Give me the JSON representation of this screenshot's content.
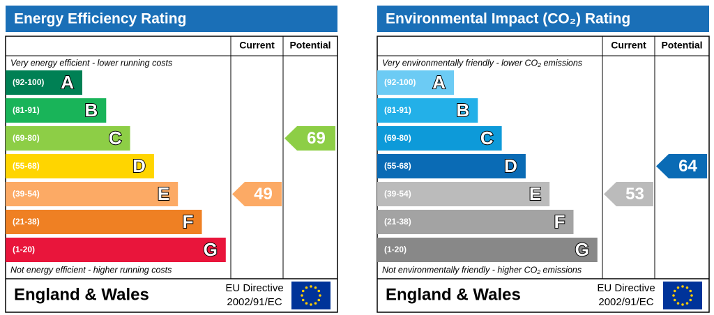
{
  "chart_data": [
    {
      "type": "epc",
      "title": "Energy Efficiency Rating",
      "columns": [
        "Current",
        "Potential"
      ],
      "top_note": "Very energy efficient - lower running costs",
      "bottom_note": "Not energy efficient - higher running costs",
      "bands": [
        {
          "label": "(92-100)",
          "letter": "A",
          "color": "#008054"
        },
        {
          "label": "(81-91)",
          "letter": "B",
          "color": "#19b459"
        },
        {
          "label": "(69-80)",
          "letter": "C",
          "color": "#8dce46"
        },
        {
          "label": "(55-68)",
          "letter": "D",
          "color": "#ffd500"
        },
        {
          "label": "(39-54)",
          "letter": "E",
          "color": "#fcaa65"
        },
        {
          "label": "(21-38)",
          "letter": "F",
          "color": "#ef8023"
        },
        {
          "label": "(1-20)",
          "letter": "G",
          "color": "#e9153b"
        }
      ],
      "current": 49,
      "potential": 69,
      "region": "England & Wales",
      "directive": [
        "EU Directive",
        "2002/91/EC"
      ]
    },
    {
      "type": "epc",
      "title": "Environmental Impact (CO₂) Rating",
      "columns": [
        "Current",
        "Potential"
      ],
      "top_note": "Very environmentally friendly - lower CO₂ emissions",
      "bottom_note": "Not environmentally friendly - higher CO₂ emissions",
      "bands": [
        {
          "label": "(92-100)",
          "letter": "A",
          "color": "#6ccbf4"
        },
        {
          "label": "(81-91)",
          "letter": "B",
          "color": "#23b0e8"
        },
        {
          "label": "(69-80)",
          "letter": "C",
          "color": "#0d9ad9"
        },
        {
          "label": "(55-68)",
          "letter": "D",
          "color": "#0a6bb5"
        },
        {
          "label": "(39-54)",
          "letter": "E",
          "color": "#bbbbbb"
        },
        {
          "label": "(21-38)",
          "letter": "F",
          "color": "#a3a3a3"
        },
        {
          "label": "(1-20)",
          "letter": "G",
          "color": "#888888"
        }
      ],
      "current": 53,
      "potential": 64,
      "region": "England & Wales",
      "directive": [
        "EU Directive",
        "2002/91/EC"
      ]
    }
  ]
}
